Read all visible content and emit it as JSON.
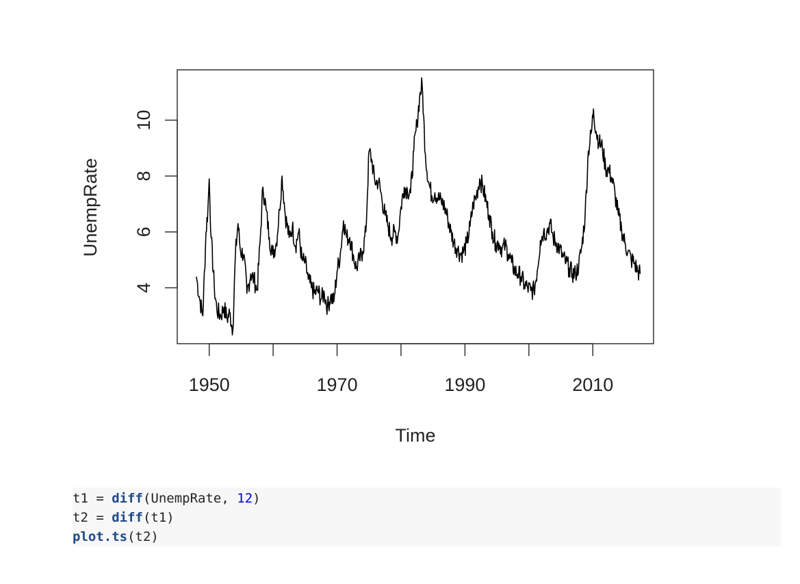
{
  "chart_data": {
    "type": "line",
    "xlabel": "Time",
    "ylabel": "UnempRate",
    "xlim": [
      1945,
      2019.5
    ],
    "ylim": [
      2.0,
      11.8
    ],
    "x_ticks": [
      1950,
      1960,
      1970,
      1980,
      1990,
      2000,
      2010
    ],
    "x_tick_labels": [
      "1950",
      "",
      "1970",
      "",
      "1990",
      "",
      "2010"
    ],
    "y_ticks": [
      4,
      6,
      8,
      10
    ],
    "y_tick_labels": [
      "4",
      "6",
      "8",
      "10"
    ],
    "series": [
      {
        "x": [
          1948.0,
          1948.5,
          1949.0,
          1949.5,
          1949.8,
          1950.0,
          1950.3,
          1950.8,
          1951.2,
          1951.8,
          1952.3,
          1952.8,
          1953.2,
          1953.7,
          1954.1,
          1954.5,
          1954.9,
          1955.4,
          1955.9,
          1956.5,
          1957.0,
          1957.5,
          1958.0,
          1958.4,
          1958.9,
          1959.4,
          1959.9,
          1960.5,
          1961.0,
          1961.4,
          1961.9,
          1962.5,
          1963.0,
          1963.5,
          1964.0,
          1964.5,
          1965.0,
          1965.5,
          1966.0,
          1966.5,
          1967.0,
          1967.5,
          1968.0,
          1968.5,
          1969.0,
          1969.5,
          1970.0,
          1970.5,
          1971.0,
          1971.5,
          1972.0,
          1972.5,
          1973.0,
          1973.5,
          1974.0,
          1974.5,
          1975.0,
          1975.4,
          1975.9,
          1976.5,
          1977.0,
          1977.5,
          1978.0,
          1978.5,
          1979.0,
          1979.5,
          1980.0,
          1980.5,
          1981.0,
          1981.5,
          1982.0,
          1982.5,
          1982.9,
          1983.3,
          1983.8,
          1984.3,
          1984.8,
          1985.3,
          1985.8,
          1986.3,
          1986.8,
          1987.3,
          1987.8,
          1988.3,
          1988.8,
          1989.3,
          1989.8,
          1990.3,
          1990.8,
          1991.3,
          1991.8,
          1992.3,
          1992.8,
          1993.3,
          1993.8,
          1994.3,
          1994.8,
          1995.3,
          1995.8,
          1996.3,
          1996.8,
          1997.3,
          1997.8,
          1998.3,
          1998.8,
          1999.3,
          1999.8,
          2000.3,
          2000.8,
          2001.3,
          2001.8,
          2002.3,
          2002.8,
          2003.3,
          2003.8,
          2004.3,
          2004.8,
          2005.3,
          2005.8,
          2006.3,
          2006.8,
          2007.3,
          2007.8,
          2008.3,
          2008.8,
          2009.3,
          2009.8,
          2010.1,
          2010.5,
          2011.0,
          2011.5,
          2012.0,
          2012.5,
          2013.0,
          2013.5,
          2014.0,
          2014.5,
          2015.0,
          2015.5,
          2016.0,
          2016.5,
          2017.0,
          2017.4
        ],
        "y": [
          4.4,
          3.6,
          3.0,
          6.0,
          6.8,
          7.9,
          5.8,
          4.0,
          3.2,
          3.0,
          3.3,
          2.9,
          3.1,
          2.5,
          5.2,
          6.3,
          5.3,
          5.2,
          3.8,
          4.5,
          4.3,
          3.9,
          5.8,
          7.6,
          6.8,
          5.8,
          5.2,
          5.6,
          6.8,
          8.0,
          6.6,
          5.8,
          6.2,
          5.5,
          6.0,
          5.0,
          4.9,
          4.3,
          4.0,
          3.8,
          3.9,
          3.6,
          3.8,
          3.3,
          3.7,
          3.5,
          4.6,
          5.2,
          6.4,
          5.8,
          5.8,
          5.2,
          4.7,
          5.0,
          5.3,
          6.0,
          8.9,
          8.6,
          7.8,
          7.8,
          7.2,
          6.6,
          6.2,
          5.8,
          6.0,
          5.8,
          6.9,
          7.6,
          7.5,
          7.4,
          8.9,
          9.9,
          10.8,
          11.3,
          8.8,
          7.8,
          7.3,
          7.4,
          7.2,
          7.1,
          6.9,
          6.5,
          6.0,
          5.6,
          5.4,
          5.2,
          5.3,
          5.6,
          6.2,
          7.0,
          7.3,
          7.9,
          7.6,
          7.1,
          6.6,
          6.0,
          5.6,
          5.6,
          5.4,
          5.5,
          5.2,
          4.9,
          4.6,
          4.5,
          4.4,
          4.1,
          4.0,
          3.9,
          3.9,
          4.6,
          5.7,
          6.0,
          6.0,
          6.3,
          5.8,
          5.6,
          5.4,
          5.1,
          4.9,
          4.7,
          4.5,
          4.5,
          4.8,
          5.5,
          6.6,
          8.9,
          9.6,
          10.4,
          9.6,
          9.2,
          9.0,
          8.3,
          8.2,
          7.9,
          7.3,
          6.6,
          6.1,
          5.6,
          5.3,
          5.0,
          4.9,
          4.6,
          4.5
        ]
      }
    ]
  },
  "code": {
    "line1": {
      "a": "t1 = ",
      "fn": "diff",
      "b": "(UnempRate, ",
      "num": "12",
      "c": ")"
    },
    "line2": {
      "a": "t2 = ",
      "fn": "diff",
      "b": "(t1)"
    },
    "line3": {
      "fn": "plot.ts",
      "b": "(t2)"
    }
  }
}
